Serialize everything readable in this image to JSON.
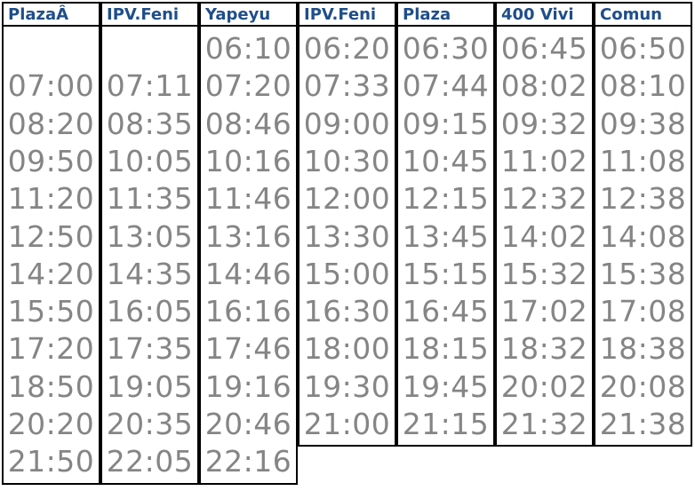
{
  "timetable": {
    "columns": [
      {
        "header": "PlazaÂ",
        "times": [
          "",
          "07:00",
          "08:20",
          "09:50",
          "11:20",
          "12:50",
          "14:20",
          "15:50",
          "17:20",
          "18:50",
          "20:20",
          "21:50"
        ]
      },
      {
        "header": "IPV.Feni",
        "times": [
          "",
          "07:11",
          "08:35",
          "10:05",
          "11:35",
          "13:05",
          "14:35",
          "16:05",
          "17:35",
          "19:05",
          "20:35",
          "22:05"
        ]
      },
      {
        "header": "Yapeyu",
        "times": [
          "06:10",
          "07:20",
          "08:46",
          "10:16",
          "11:46",
          "13:16",
          "14:46",
          "16:16",
          "17:46",
          "19:16",
          "20:46",
          "22:16"
        ]
      },
      {
        "header": "IPV.Feni",
        "times": [
          "06:20",
          "07:33",
          "09:00",
          "10:30",
          "12:00",
          "13:30",
          "15:00",
          "16:30",
          "18:00",
          "19:30",
          "21:00"
        ]
      },
      {
        "header": "Plaza",
        "times": [
          "06:30",
          "07:44",
          "09:15",
          "10:45",
          "12:15",
          "13:45",
          "15:15",
          "16:45",
          "18:15",
          "19:45",
          "21:15"
        ]
      },
      {
        "header": "400 Vivi",
        "times": [
          "06:45",
          "08:02",
          "09:32",
          "11:02",
          "12:32",
          "14:02",
          "15:32",
          "17:02",
          "18:32",
          "20:02",
          "21:32"
        ]
      },
      {
        "header": "Comun",
        "times": [
          "06:50",
          "08:10",
          "09:38",
          "11:08",
          "12:38",
          "14:08",
          "15:38",
          "17:08",
          "18:38",
          "20:08",
          "21:38"
        ]
      }
    ]
  }
}
